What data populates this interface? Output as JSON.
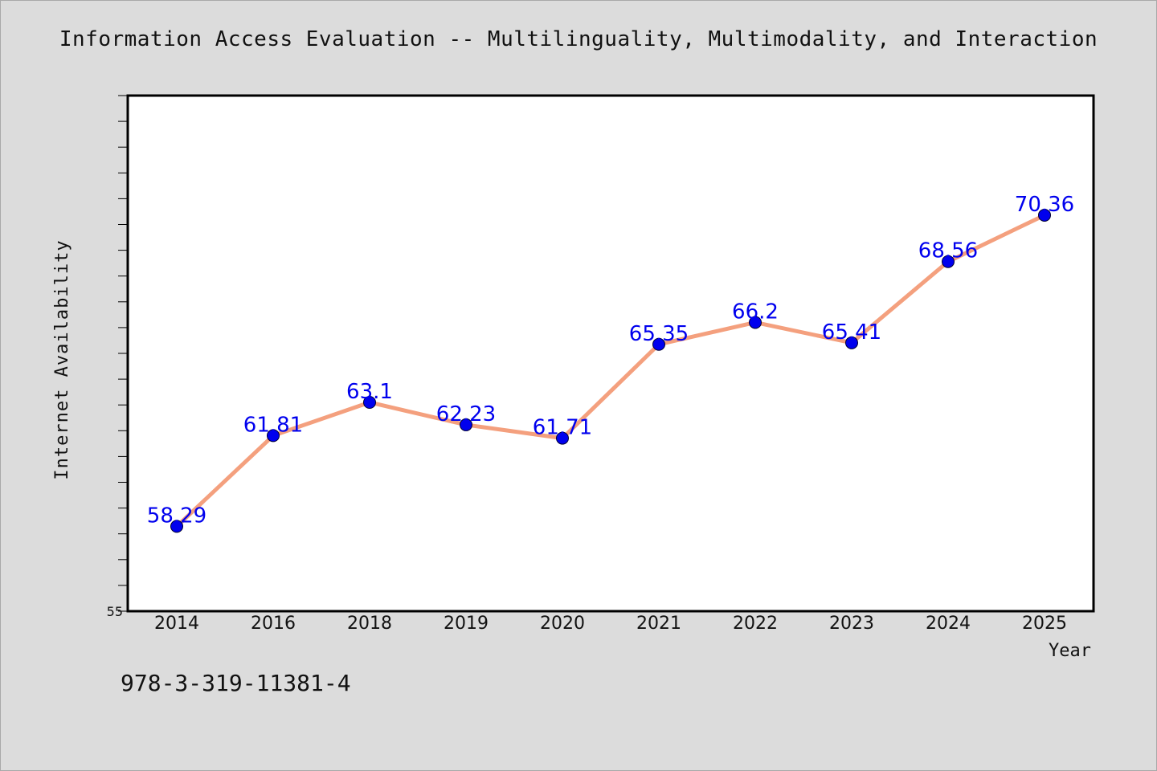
{
  "colors": {
    "background": "#dcdcdc",
    "plot_background": "#ffffff",
    "line": "#f4a07e",
    "marker": "#0000ee",
    "label": "#0000ee"
  },
  "chart_data": {
    "type": "line",
    "title": "Information Access Evaluation -- Multilinguality, Multimodality, and Interaction",
    "xlabel": "Year",
    "ylabel": "Internet Availability",
    "categories": [
      "2014",
      "2016",
      "2018",
      "2019",
      "2020",
      "2021",
      "2022",
      "2023",
      "2024",
      "2025"
    ],
    "series": [
      {
        "values": [
          58.29,
          61.81,
          63.1,
          62.23,
          61.71,
          65.35,
          66.2,
          65.41,
          68.56,
          70.36
        ],
        "labels": [
          "58.29",
          "61.81",
          "63.1",
          "62.23",
          "61.71",
          "65.35",
          "66.2",
          "65.41",
          "68.56",
          "70.36"
        ]
      }
    ],
    "ylim": [
      55,
      75
    ],
    "yticks_labeled": [
      "55"
    ],
    "ytick_step": 1,
    "grid": false,
    "legend": "none"
  },
  "footer": {
    "isbn": "978-3-319-11381-4"
  }
}
